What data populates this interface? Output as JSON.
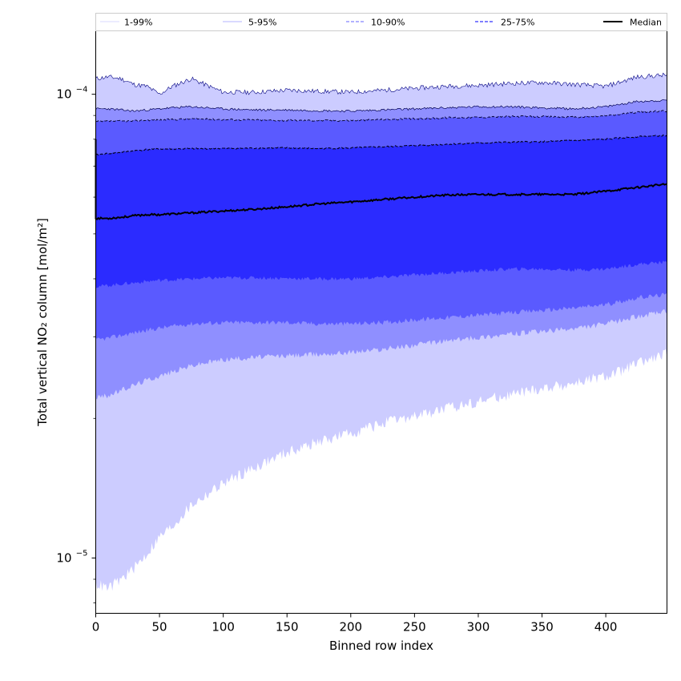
{
  "chart_data": {
    "type": "area",
    "xlabel": "Binned row index",
    "ylabel": "Total vertical NO₂ column [mol/m²]",
    "xlim": [
      0,
      448
    ],
    "ylim": [
      7.6e-06,
      0.000137
    ],
    "yscale": "log",
    "grid": false,
    "legend_placement": "top",
    "x_ticks": [
      "0",
      "50",
      "100",
      "150",
      "200",
      "250",
      "300",
      "350",
      "400"
    ],
    "y_ticks": [
      {
        "base": "10",
        "exp": "−4",
        "value": 0.0001
      },
      {
        "base": "10",
        "exp": "−5",
        "value": 1e-05
      }
    ],
    "x": [
      0,
      10,
      20,
      30,
      40,
      50,
      60,
      75,
      100,
      125,
      150,
      175,
      200,
      225,
      250,
      275,
      300,
      325,
      350,
      375,
      400,
      425,
      448
    ],
    "series": [
      {
        "name": "1-99%",
        "style": "solid-thin",
        "color": "#ccccff",
        "lower": [
          8.8e-06,
          8.6e-06,
          9e-06,
          9.5e-06,
          1.02e-05,
          1.11e-05,
          1.17e-05,
          1.3e-05,
          1.45e-05,
          1.57e-05,
          1.69e-05,
          1.78e-05,
          1.86e-05,
          1.95e-05,
          2.02e-05,
          2.1e-05,
          2.18e-05,
          2.25e-05,
          2.32e-05,
          2.38e-05,
          2.46e-05,
          2.62e-05,
          2.75e-05
        ],
        "upper": [
          0.000108,
          0.000109,
          0.000108,
          0.000105,
          0.000104,
          0.0001,
          0.000104,
          0.000108,
          0.000101,
          0.000101,
          0.000102,
          0.0001015,
          0.000101,
          0.000102,
          0.000103,
          0.000104,
          0.0001045,
          0.0001055,
          0.000106,
          0.000105,
          0.000104,
          0.000109,
          0.00011
        ]
      },
      {
        "name": "5-95%",
        "style": "solid-thin",
        "color": "#8f8fff",
        "lower": [
          2.22e-05,
          2.24e-05,
          2.3e-05,
          2.36e-05,
          2.42e-05,
          2.47e-05,
          2.52e-05,
          2.6e-05,
          2.68e-05,
          2.71e-05,
          2.73e-05,
          2.75e-05,
          2.78e-05,
          2.82e-05,
          2.88e-05,
          2.94e-05,
          2.99e-05,
          3.04e-05,
          3.08e-05,
          3.12e-05,
          3.2e-05,
          3.32e-05,
          3.4e-05
        ],
        "upper": [
          9.3e-05,
          9.3e-05,
          9.25e-05,
          9.2e-05,
          9.25e-05,
          9.3e-05,
          9.35e-05,
          9.4e-05,
          9.3e-05,
          9.25e-05,
          9.25e-05,
          9.22e-05,
          9.2e-05,
          9.25e-05,
          9.3e-05,
          9.35e-05,
          9.4e-05,
          9.4e-05,
          9.35e-05,
          9.3e-05,
          9.4e-05,
          9.65e-05,
          9.7e-05
        ]
      },
      {
        "name": "10-90%",
        "style": "dashed",
        "color": "#5a5aff",
        "lower": [
          2.95e-05,
          2.98e-05,
          3.02e-05,
          3.06e-05,
          3.1e-05,
          3.13e-05,
          3.16e-05,
          3.2e-05,
          3.22e-05,
          3.22e-05,
          3.22e-05,
          3.2e-05,
          3.2e-05,
          3.22e-05,
          3.26e-05,
          3.3e-05,
          3.34e-05,
          3.38e-05,
          3.42e-05,
          3.46e-05,
          3.52e-05,
          3.64e-05,
          3.7e-05
        ]
      },
      {
        "name": "25-75%",
        "style": "dashed",
        "color": "#2b2bff",
        "lower": [
          3.85e-05,
          3.87e-05,
          3.9e-05,
          3.92e-05,
          3.95e-05,
          3.97e-05,
          3.98e-05,
          4e-05,
          4.02e-05,
          4.02e-05,
          4.01e-05,
          4e-05,
          4e-05,
          4.03e-05,
          4.08e-05,
          4.12e-05,
          4.16e-05,
          4.2e-05,
          4.2e-05,
          4.18e-05,
          4.2e-05,
          4.3e-05,
          4.35e-05
        ],
        "upper": [
          7.4e-05,
          7.45e-05,
          7.5e-05,
          7.55e-05,
          7.6e-05,
          7.62e-05,
          7.62e-05,
          7.63e-05,
          7.64e-05,
          7.65e-05,
          7.66e-05,
          7.64e-05,
          7.66e-05,
          7.7e-05,
          7.75e-05,
          7.8e-05,
          7.85e-05,
          7.88e-05,
          7.9e-05,
          7.95e-05,
          8e-05,
          8.1e-05,
          8.15e-05
        ]
      },
      {
        "name": "Median",
        "style": "solid-thick",
        "color": "#000000",
        "values": [
          5.4e-05,
          5.4e-05,
          5.43e-05,
          5.47e-05,
          5.5e-05,
          5.5e-05,
          5.52e-05,
          5.55e-05,
          5.6e-05,
          5.65e-05,
          5.72e-05,
          5.8e-05,
          5.86e-05,
          5.93e-05,
          6e-05,
          6.06e-05,
          6.08e-05,
          6.08e-05,
          6.08e-05,
          6.08e-05,
          6.18e-05,
          6.3e-05,
          6.4e-05
        ]
      }
    ],
    "extra_series_bounds": {
      "10-90%_upper": [
        8.72e-05,
        8.75e-05,
        8.75e-05,
        8.75e-05,
        8.8e-05,
        8.8e-05,
        8.82e-05,
        8.85e-05,
        8.82e-05,
        8.8e-05,
        8.78e-05,
        8.78e-05,
        8.78e-05,
        8.82e-05,
        8.85e-05,
        8.9e-05,
        8.92e-05,
        8.95e-05,
        8.95e-05,
        8.92e-05,
        8.98e-05,
        9.15e-05,
        9.2e-05
      ]
    }
  }
}
